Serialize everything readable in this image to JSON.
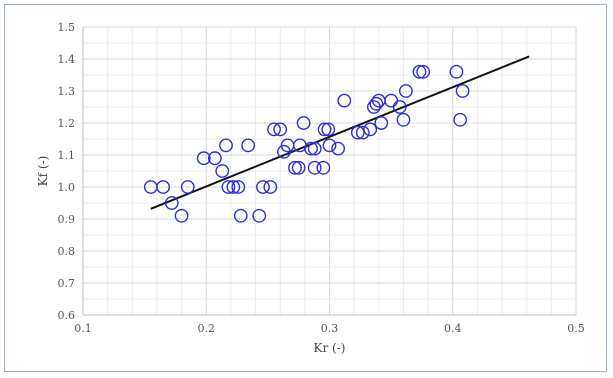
{
  "chart_data": {
    "type": "scatter",
    "title": "",
    "xlabel": "Kr (-)",
    "ylabel": "Kf (-)",
    "xlim": [
      0.1,
      0.5
    ],
    "ylim": [
      0.6,
      1.5
    ],
    "grid": true,
    "x_ticks": [
      "0.1",
      "0.2",
      "0.3",
      "0.4",
      "0.5"
    ],
    "y_ticks": [
      "0.6",
      "0.7",
      "0.8",
      "0.9",
      "1.0",
      "1.1",
      "1.2",
      "1.3",
      "1.4",
      "1.5"
    ],
    "marker_color": "#2a2fd4",
    "trendline_color": "#111111",
    "points": [
      {
        "x": 0.155,
        "y": 1.0
      },
      {
        "x": 0.165,
        "y": 1.0
      },
      {
        "x": 0.172,
        "y": 0.95
      },
      {
        "x": 0.18,
        "y": 0.91
      },
      {
        "x": 0.185,
        "y": 1.0
      },
      {
        "x": 0.198,
        "y": 1.09
      },
      {
        "x": 0.207,
        "y": 1.09
      },
      {
        "x": 0.213,
        "y": 1.05
      },
      {
        "x": 0.216,
        "y": 1.13
      },
      {
        "x": 0.218,
        "y": 1.0
      },
      {
        "x": 0.222,
        "y": 1.0
      },
      {
        "x": 0.226,
        "y": 1.0
      },
      {
        "x": 0.228,
        "y": 0.91
      },
      {
        "x": 0.234,
        "y": 1.13
      },
      {
        "x": 0.243,
        "y": 0.91
      },
      {
        "x": 0.246,
        "y": 1.0
      },
      {
        "x": 0.252,
        "y": 1.0
      },
      {
        "x": 0.255,
        "y": 1.18
      },
      {
        "x": 0.26,
        "y": 1.18
      },
      {
        "x": 0.263,
        "y": 1.11
      },
      {
        "x": 0.266,
        "y": 1.13
      },
      {
        "x": 0.272,
        "y": 1.06
      },
      {
        "x": 0.275,
        "y": 1.06
      },
      {
        "x": 0.276,
        "y": 1.13
      },
      {
        "x": 0.279,
        "y": 1.2
      },
      {
        "x": 0.285,
        "y": 1.12
      },
      {
        "x": 0.288,
        "y": 1.12
      },
      {
        "x": 0.288,
        "y": 1.06
      },
      {
        "x": 0.295,
        "y": 1.06
      },
      {
        "x": 0.296,
        "y": 1.18
      },
      {
        "x": 0.299,
        "y": 1.18
      },
      {
        "x": 0.3,
        "y": 1.13
      },
      {
        "x": 0.307,
        "y": 1.12
      },
      {
        "x": 0.312,
        "y": 1.27
      },
      {
        "x": 0.323,
        "y": 1.17
      },
      {
        "x": 0.327,
        "y": 1.17
      },
      {
        "x": 0.333,
        "y": 1.18
      },
      {
        "x": 0.336,
        "y": 1.25
      },
      {
        "x": 0.338,
        "y": 1.26
      },
      {
        "x": 0.34,
        "y": 1.27
      },
      {
        "x": 0.342,
        "y": 1.2
      },
      {
        "x": 0.35,
        "y": 1.27
      },
      {
        "x": 0.357,
        "y": 1.25
      },
      {
        "x": 0.36,
        "y": 1.21
      },
      {
        "x": 0.362,
        "y": 1.3
      },
      {
        "x": 0.373,
        "y": 1.36
      },
      {
        "x": 0.376,
        "y": 1.36
      },
      {
        "x": 0.403,
        "y": 1.36
      },
      {
        "x": 0.406,
        "y": 1.21
      },
      {
        "x": 0.408,
        "y": 1.3
      }
    ],
    "trendline": {
      "x": [
        0.155,
        0.462
      ],
      "y": [
        0.932,
        1.408
      ]
    }
  }
}
